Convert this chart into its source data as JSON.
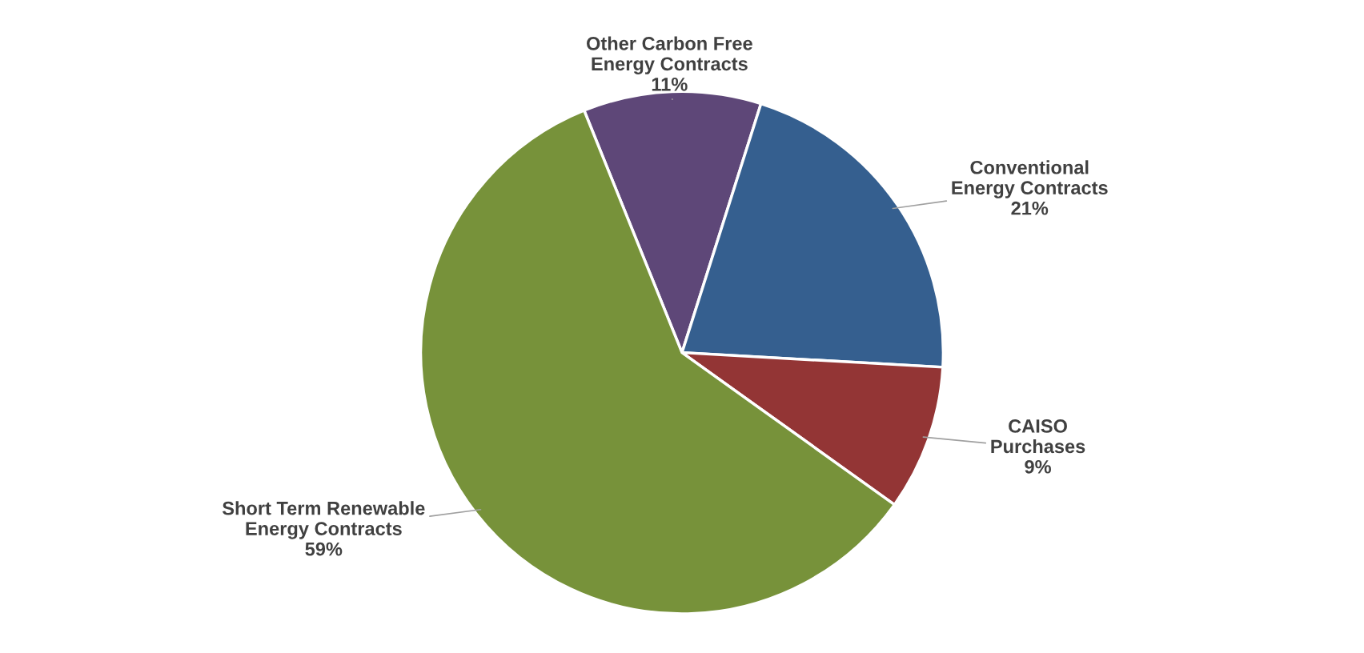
{
  "chart_data": {
    "type": "pie",
    "categories": [
      "Other Carbon Free Energy Contracts",
      "Conventional Energy Contracts",
      "CAISO Purchases",
      "Short Term Renewable Energy Contracts"
    ],
    "values": [
      11,
      21,
      9,
      59
    ],
    "colors": [
      "#5e4778",
      "#355f8f",
      "#933535",
      "#77923a"
    ],
    "value_labels": [
      "11%",
      "21%",
      "9%",
      "59%"
    ]
  }
}
